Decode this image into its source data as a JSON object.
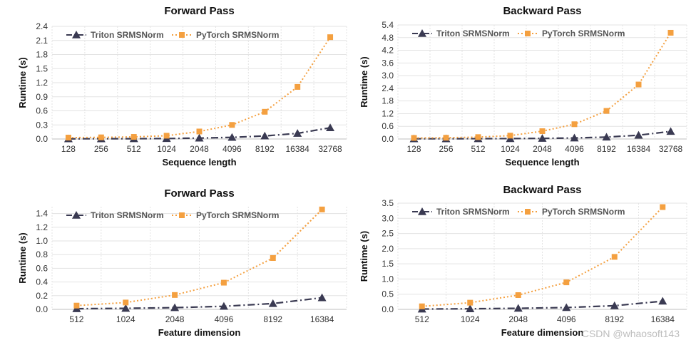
{
  "colors": {
    "triton": "#3a3a52",
    "pytorch": "#f4a040",
    "grid": "#e3e3e3",
    "axis": "#bfbfbf"
  },
  "watermark": "CSDN @whaosoft143",
  "chart_data": [
    {
      "type": "line",
      "title": "Forward Pass",
      "xlabel": "Sequence length",
      "ylabel": "Runtime (s)",
      "categories": [
        "128",
        "256",
        "512",
        "1024",
        "2048",
        "4096",
        "8192",
        "16384",
        "32768"
      ],
      "ylim": [
        0,
        2.4
      ],
      "yticks": [
        "0.0",
        "0.3",
        "0.6",
        "0.9",
        "1.2",
        "1.5",
        "1.8",
        "2.1",
        "2.4"
      ],
      "legend_position": "top-left",
      "series": [
        {
          "name": "Triton SRMSNorm",
          "marker": "triangle",
          "style": "dashdot",
          "values": [
            0.004,
            0.005,
            0.006,
            0.01,
            0.02,
            0.035,
            0.065,
            0.12,
            0.24
          ]
        },
        {
          "name": "PyTorch SRMSNorm",
          "marker": "square",
          "style": "dotted",
          "values": [
            0.03,
            0.035,
            0.045,
            0.07,
            0.16,
            0.3,
            0.58,
            1.11,
            2.17
          ]
        }
      ]
    },
    {
      "type": "line",
      "title": "Backward Pass",
      "xlabel": "Sequence length",
      "ylabel": "Runtime (s)",
      "categories": [
        "128",
        "256",
        "512",
        "1024",
        "2048",
        "4096",
        "8192",
        "16384",
        "32768"
      ],
      "ylim": [
        0,
        5.4
      ],
      "yticks": [
        "0.0",
        "0.6",
        "1.2",
        "1.8",
        "2.4",
        "3.0",
        "3.6",
        "4.2",
        "4.8",
        "5.4"
      ],
      "legend_position": "top-left",
      "series": [
        {
          "name": "Triton SRMSNorm",
          "marker": "triangle",
          "style": "dashdot",
          "values": [
            0.01,
            0.012,
            0.015,
            0.02,
            0.03,
            0.05,
            0.09,
            0.18,
            0.36
          ]
        },
        {
          "name": "PyTorch SRMSNorm",
          "marker": "square",
          "style": "dotted",
          "values": [
            0.05,
            0.06,
            0.09,
            0.16,
            0.37,
            0.7,
            1.33,
            2.58,
            5.03
          ]
        }
      ]
    },
    {
      "type": "line",
      "title": "Forward Pass",
      "xlabel": "Feature dimension",
      "ylabel": "Runtime (s)",
      "categories": [
        "512",
        "1024",
        "2048",
        "4096",
        "8192",
        "16384"
      ],
      "ylim": [
        0,
        1.5
      ],
      "yticks": [
        "0.0",
        "0.2",
        "0.4",
        "0.6",
        "0.8",
        "1.0",
        "1.2",
        "1.4"
      ],
      "legend_position": "top-left",
      "series": [
        {
          "name": "Triton SRMSNorm",
          "marker": "triangle",
          "style": "dashdot",
          "values": [
            0.01,
            0.015,
            0.025,
            0.045,
            0.085,
            0.17
          ]
        },
        {
          "name": "PyTorch SRMSNorm",
          "marker": "square",
          "style": "dotted",
          "values": [
            0.055,
            0.1,
            0.21,
            0.39,
            0.75,
            1.46
          ]
        }
      ]
    },
    {
      "type": "line",
      "title": "Backward Pass",
      "xlabel": "Feature dimension",
      "ylabel": "Runtime (s)",
      "categories": [
        "512",
        "1024",
        "2048",
        "4096",
        "8192",
        "16384"
      ],
      "ylim": [
        0,
        3.5
      ],
      "yticks": [
        "0.0",
        "0.5",
        "1.0",
        "1.5",
        "2.0",
        "2.5",
        "3.0",
        "3.5"
      ],
      "legend_position": "top-left",
      "series": [
        {
          "name": "Triton SRMSNorm",
          "marker": "triangle",
          "style": "dashdot",
          "values": [
            0.01,
            0.02,
            0.035,
            0.06,
            0.12,
            0.27
          ]
        },
        {
          "name": "PyTorch SRMSNorm",
          "marker": "square",
          "style": "dotted",
          "values": [
            0.1,
            0.22,
            0.47,
            0.89,
            1.73,
            3.37
          ]
        }
      ]
    }
  ]
}
